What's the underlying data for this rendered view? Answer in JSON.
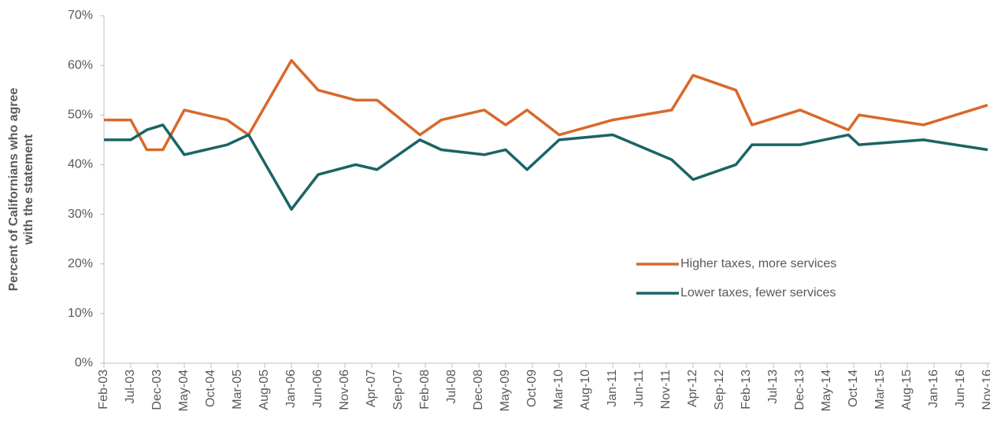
{
  "chart_data": {
    "type": "line",
    "y_label": [
      "Percent of Californians who agree",
      "with the statement"
    ],
    "x": [
      "Feb-03",
      "Jul-03",
      "Oct-03",
      "Jan-04",
      "May-04",
      "Jan-05",
      "May-05",
      "Jan-06",
      "Jun-06",
      "Jan-07",
      "May-07",
      "Jan-08",
      "May-08",
      "Jan-09",
      "May-09",
      "Sep-09",
      "Mar-10",
      "Jan-11",
      "Dec-11",
      "Apr-12",
      "Dec-12",
      "Mar-13",
      "Dec-13",
      "Sep-14",
      "Nov-14",
      "Nov-15",
      "Nov-16"
    ],
    "series": [
      {
        "name": "Higher taxes, more services",
        "color": "#d8692b",
        "values": [
          49,
          49,
          43,
          43,
          51,
          49,
          46,
          61,
          55,
          53,
          53,
          46,
          49,
          51,
          48,
          51,
          46,
          49,
          51,
          58,
          55,
          48,
          51,
          47,
          50,
          48,
          52
        ]
      },
      {
        "name": "Lower taxes, fewer services",
        "color": "#1b6464",
        "values": [
          45,
          45,
          47,
          48,
          42,
          44,
          46,
          31,
          38,
          40,
          39,
          45,
          43,
          42,
          43,
          39,
          45,
          46,
          41,
          37,
          40,
          44,
          44,
          46,
          44,
          45,
          43
        ]
      }
    ],
    "xlim": [
      "Feb-03",
      "Nov-16"
    ],
    "xticks": [
      "Feb-03",
      "Jul-03",
      "Dec-03",
      "May-04",
      "Oct-04",
      "Mar-05",
      "Aug-05",
      "Jan-06",
      "Jun-06",
      "Nov-06",
      "Apr-07",
      "Sep-07",
      "Feb-08",
      "Jul-08",
      "Dec-08",
      "May-09",
      "Oct-09",
      "Mar-10",
      "Aug-10",
      "Jan-11",
      "Jun-11",
      "Nov-11",
      "Apr-12",
      "Sep-12",
      "Feb-13",
      "Jul-13",
      "Dec-13",
      "May-14",
      "Oct-14",
      "Mar-15",
      "Aug-15",
      "Jan-16",
      "Jun-16",
      "Nov-16"
    ],
    "ylim": [
      0,
      70
    ],
    "yticks": [
      {
        "value": 0,
        "label": "0%"
      },
      {
        "value": 10,
        "label": "10%"
      },
      {
        "value": 20,
        "label": "20%"
      },
      {
        "value": 30,
        "label": "30%"
      },
      {
        "value": 40,
        "label": "40%"
      },
      {
        "value": 50,
        "label": "50%"
      },
      {
        "value": 60,
        "label": "60%"
      },
      {
        "value": 70,
        "label": "70%"
      }
    ],
    "grid": false,
    "legend": "center-right"
  }
}
